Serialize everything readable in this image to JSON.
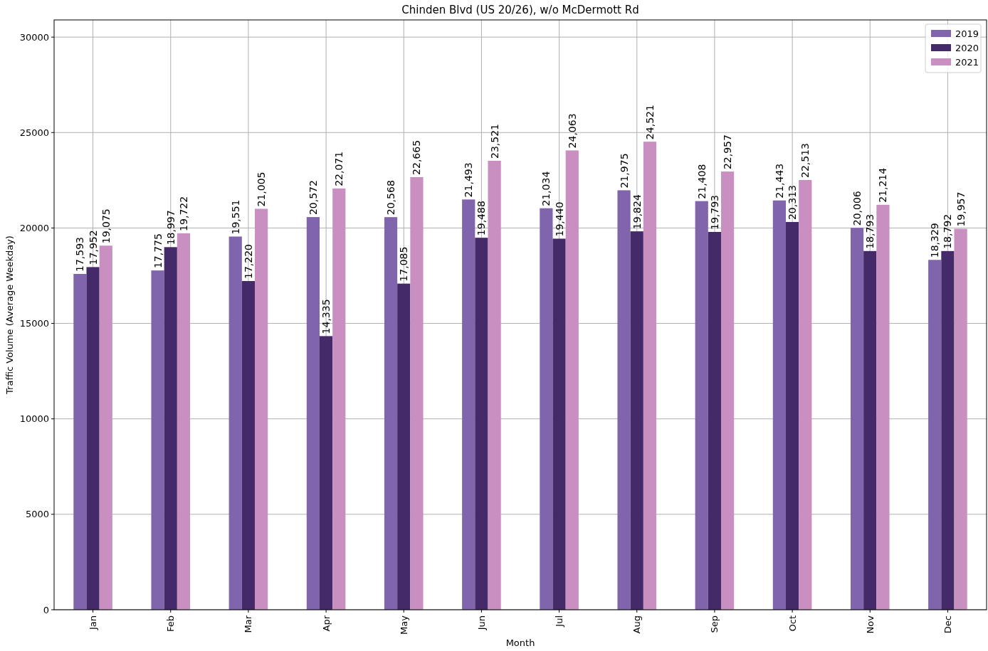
{
  "chart_data": {
    "type": "bar",
    "title": "Chinden Blvd (US 20/26), w/o McDermott Rd",
    "xlabel": "Month",
    "ylabel": "Traffic Volume (Average Weekday)",
    "categories": [
      "Jan",
      "Feb",
      "Mar",
      "Apr",
      "May",
      "Jun",
      "Jul",
      "Aug",
      "Sep",
      "Oct",
      "Nov",
      "Dec"
    ],
    "series": [
      {
        "name": "2019",
        "color": "#8064ac",
        "values": [
          17593,
          17775,
          19551,
          20572,
          20568,
          21493,
          21034,
          21975,
          21408,
          21443,
          20006,
          18329
        ],
        "value_labels": [
          "17,593",
          "17,775",
          "19,551",
          "20,572",
          "20,568",
          "21,493",
          "21,034",
          "21,975",
          "21,408",
          "21,443",
          "20,006",
          "18,329"
        ]
      },
      {
        "name": "2020",
        "color": "#452a6a",
        "values": [
          17952,
          18997,
          17220,
          14335,
          17085,
          19488,
          19440,
          19824,
          19793,
          20313,
          18793,
          18792
        ],
        "value_labels": [
          "17,952",
          "18,997",
          "17,220",
          "14,335",
          "17,085",
          "19,488",
          "19,440",
          "19,824",
          "19,793",
          "20,313",
          "18,793",
          "18,792"
        ]
      },
      {
        "name": "2021",
        "color": "#c98fc0",
        "values": [
          19075,
          19722,
          21005,
          22071,
          22665,
          23521,
          24063,
          24521,
          22957,
          22513,
          21214,
          19957
        ],
        "value_labels": [
          "19,075",
          "19,722",
          "21,005",
          "22,071",
          "22,665",
          "23,521",
          "24,063",
          "24,521",
          "22,957",
          "22,513",
          "21,214",
          "19,957"
        ]
      }
    ],
    "ylim": [
      0,
      30900
    ],
    "yticks": [
      0,
      5000,
      10000,
      15000,
      20000,
      25000,
      30000
    ],
    "grid": true,
    "legend": "top right"
  }
}
